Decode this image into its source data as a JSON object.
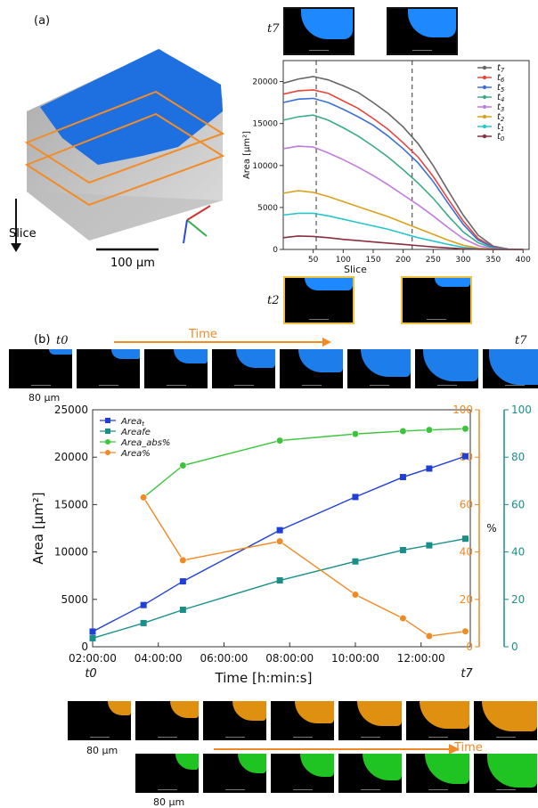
{
  "panel_a": {
    "label": "(a)",
    "slice_label": "Slice",
    "scale_label": "100 μm",
    "top_thumb_time": "t7",
    "bottom_thumb_time": "t2",
    "thumb_caption": "80 μm"
  },
  "panel_b": {
    "label": "(b)",
    "time_label": "Time",
    "t_start": "t0",
    "t_end": "t7",
    "scale_label": "80 μm",
    "scale_label_2": "80 μm",
    "time_label_2": "Time"
  },
  "colors": {
    "blue_biofilm": "#1e88ff",
    "orange_biofilm": "#f39c12",
    "green_biofilm": "#22d425",
    "box_yellow": "#f0c040",
    "box_black": "#111111"
  },
  "chart_data": [
    {
      "type": "line",
      "xlabel": "Slice",
      "ylabel": "Area [μm²]",
      "xlim": [
        0,
        410
      ],
      "ylim": [
        0,
        22500
      ],
      "xticks": [
        50,
        100,
        150,
        200,
        250,
        300,
        350,
        400
      ],
      "yticks": [
        0,
        5000,
        10000,
        15000,
        20000
      ],
      "vlines": [
        55,
        215
      ],
      "legend_position": "top-right",
      "series": [
        {
          "name": "t7",
          "color": "#666666",
          "x": [
            0,
            25,
            50,
            75,
            100,
            125,
            150,
            175,
            200,
            225,
            250,
            275,
            300,
            325,
            350,
            375,
            400
          ],
          "values": [
            19800,
            20300,
            20600,
            20200,
            19500,
            18700,
            17500,
            16200,
            14600,
            12600,
            10000,
            7000,
            4100,
            1700,
            400,
            50,
            0
          ]
        },
        {
          "name": "t6",
          "color": "#e8453c",
          "x": [
            0,
            25,
            50,
            75,
            100,
            125,
            150,
            175,
            200,
            225,
            250,
            275,
            300,
            325,
            350,
            375,
            400
          ],
          "values": [
            18500,
            18900,
            19000,
            18600,
            17700,
            16800,
            15600,
            14300,
            12700,
            11000,
            8700,
            6000,
            3400,
            1300,
            300,
            40,
            0
          ]
        },
        {
          "name": "t5",
          "color": "#3a6fd8",
          "x": [
            0,
            25,
            50,
            75,
            100,
            125,
            150,
            175,
            200,
            225,
            250,
            275,
            300,
            325,
            350,
            375,
            400
          ],
          "values": [
            17500,
            17900,
            18000,
            17500,
            16700,
            15800,
            14800,
            13500,
            12000,
            10300,
            8100,
            5500,
            3000,
            1100,
            250,
            30,
            0
          ]
        },
        {
          "name": "t4",
          "color": "#3aaa8a",
          "x": [
            0,
            25,
            50,
            75,
            100,
            125,
            150,
            175,
            200,
            225,
            250,
            275,
            300,
            325,
            350,
            375,
            400
          ],
          "values": [
            15400,
            15800,
            16000,
            15400,
            14500,
            13500,
            12300,
            11000,
            9500,
            7900,
            6100,
            4000,
            2100,
            800,
            150,
            20,
            0
          ]
        },
        {
          "name": "t3",
          "color": "#c07be0",
          "x": [
            0,
            25,
            50,
            75,
            100,
            125,
            150,
            175,
            200,
            225,
            250,
            275,
            300,
            325,
            350,
            375,
            400
          ],
          "values": [
            12000,
            12300,
            12200,
            11500,
            10700,
            9800,
            8800,
            7700,
            6500,
            5300,
            4000,
            2600,
            1300,
            450,
            80,
            10,
            0
          ]
        },
        {
          "name": "t2",
          "color": "#d9a21b",
          "x": [
            0,
            25,
            50,
            75,
            100,
            125,
            150,
            175,
            200,
            225,
            250,
            275,
            300,
            325,
            350,
            375,
            400
          ],
          "values": [
            6700,
            7000,
            6800,
            6300,
            5700,
            5100,
            4500,
            3900,
            3200,
            2500,
            1800,
            1100,
            500,
            150,
            20,
            0,
            0
          ]
        },
        {
          "name": "t1",
          "color": "#25c6cc",
          "x": [
            0,
            25,
            50,
            75,
            100,
            125,
            150,
            175,
            200,
            225,
            250,
            275,
            300,
            325,
            350,
            375,
            400
          ],
          "values": [
            4100,
            4300,
            4300,
            4000,
            3600,
            3200,
            2800,
            2400,
            1900,
            1400,
            1000,
            600,
            250,
            60,
            10,
            0,
            0
          ]
        },
        {
          "name": "t0",
          "color": "#8a2f3f",
          "x": [
            0,
            25,
            50,
            75,
            100,
            125,
            150,
            175,
            200,
            225,
            250,
            275,
            300,
            325,
            350,
            375,
            400
          ],
          "values": [
            1400,
            1600,
            1550,
            1400,
            1200,
            1050,
            900,
            750,
            600,
            450,
            300,
            180,
            80,
            20,
            0,
            0,
            0
          ]
        }
      ]
    },
    {
      "type": "line",
      "xlabel": "Time [h:min:s]",
      "ylabel": "Area [μm²]",
      "ylabel_right": "%",
      "xlim": [
        2.0,
        13.5
      ],
      "ylim": [
        0,
        25000
      ],
      "ylim_right_orange": [
        0,
        100
      ],
      "ylim_right_teal": [
        0,
        100
      ],
      "xtick_labels": [
        "02:00:00",
        "04:00:00",
        "06:00:00",
        "08:00:00",
        "10:00:00",
        "12:00:00"
      ],
      "xtick_values": [
        2,
        4,
        6,
        8,
        10,
        12
      ],
      "yticks": [
        0,
        5000,
        10000,
        15000,
        20000,
        25000
      ],
      "yticks_right": [
        0,
        20,
        40,
        60,
        80,
        100
      ],
      "legend_position": "top-left",
      "series": [
        {
          "name": "Area_t",
          "legend_main": "Area",
          "legend_sub": "t",
          "axis": "left",
          "color": "#1f3fd6",
          "marker": "square",
          "x": [
            2.0,
            3.55,
            4.75,
            7.7,
            10.0,
            11.45,
            12.25,
            13.35
          ],
          "values": [
            1600,
            4400,
            6900,
            12300,
            15800,
            17900,
            18800,
            20100
          ]
        },
        {
          "name": "Areafe",
          "legend_main": "Areafe",
          "legend_sub": "",
          "axis": "left",
          "color": "#1a8f8a",
          "marker": "square",
          "x": [
            2.0,
            3.55,
            4.75,
            7.7,
            10.0,
            11.45,
            12.25,
            13.35
          ],
          "values": [
            900,
            2500,
            3900,
            7000,
            9000,
            10200,
            10700,
            11400
          ]
        },
        {
          "name": "Area_abs%",
          "legend_main": "Area_abs%",
          "legend_sub": "",
          "axis": "right",
          "color": "#3cc43c",
          "marker": "circle",
          "x": [
            4.75,
            7.7,
            10.0,
            11.45,
            12.25,
            13.35
          ],
          "values": [
            76.5,
            87,
            89.8,
            91,
            91.5,
            92
          ],
          "x_first": 3.55,
          "first_value": 63
        }
      ],
      "series_orange": {
        "name": "Area%",
        "legend_main": "Area%",
        "axis": "right",
        "color": "#f08a24",
        "marker": "circle",
        "x": [
          3.55,
          4.75,
          7.7,
          10.0,
          11.45,
          12.25,
          13.35
        ],
        "values": [
          63,
          36.5,
          44.5,
          22,
          12,
          4.5,
          6.5
        ]
      }
    }
  ]
}
